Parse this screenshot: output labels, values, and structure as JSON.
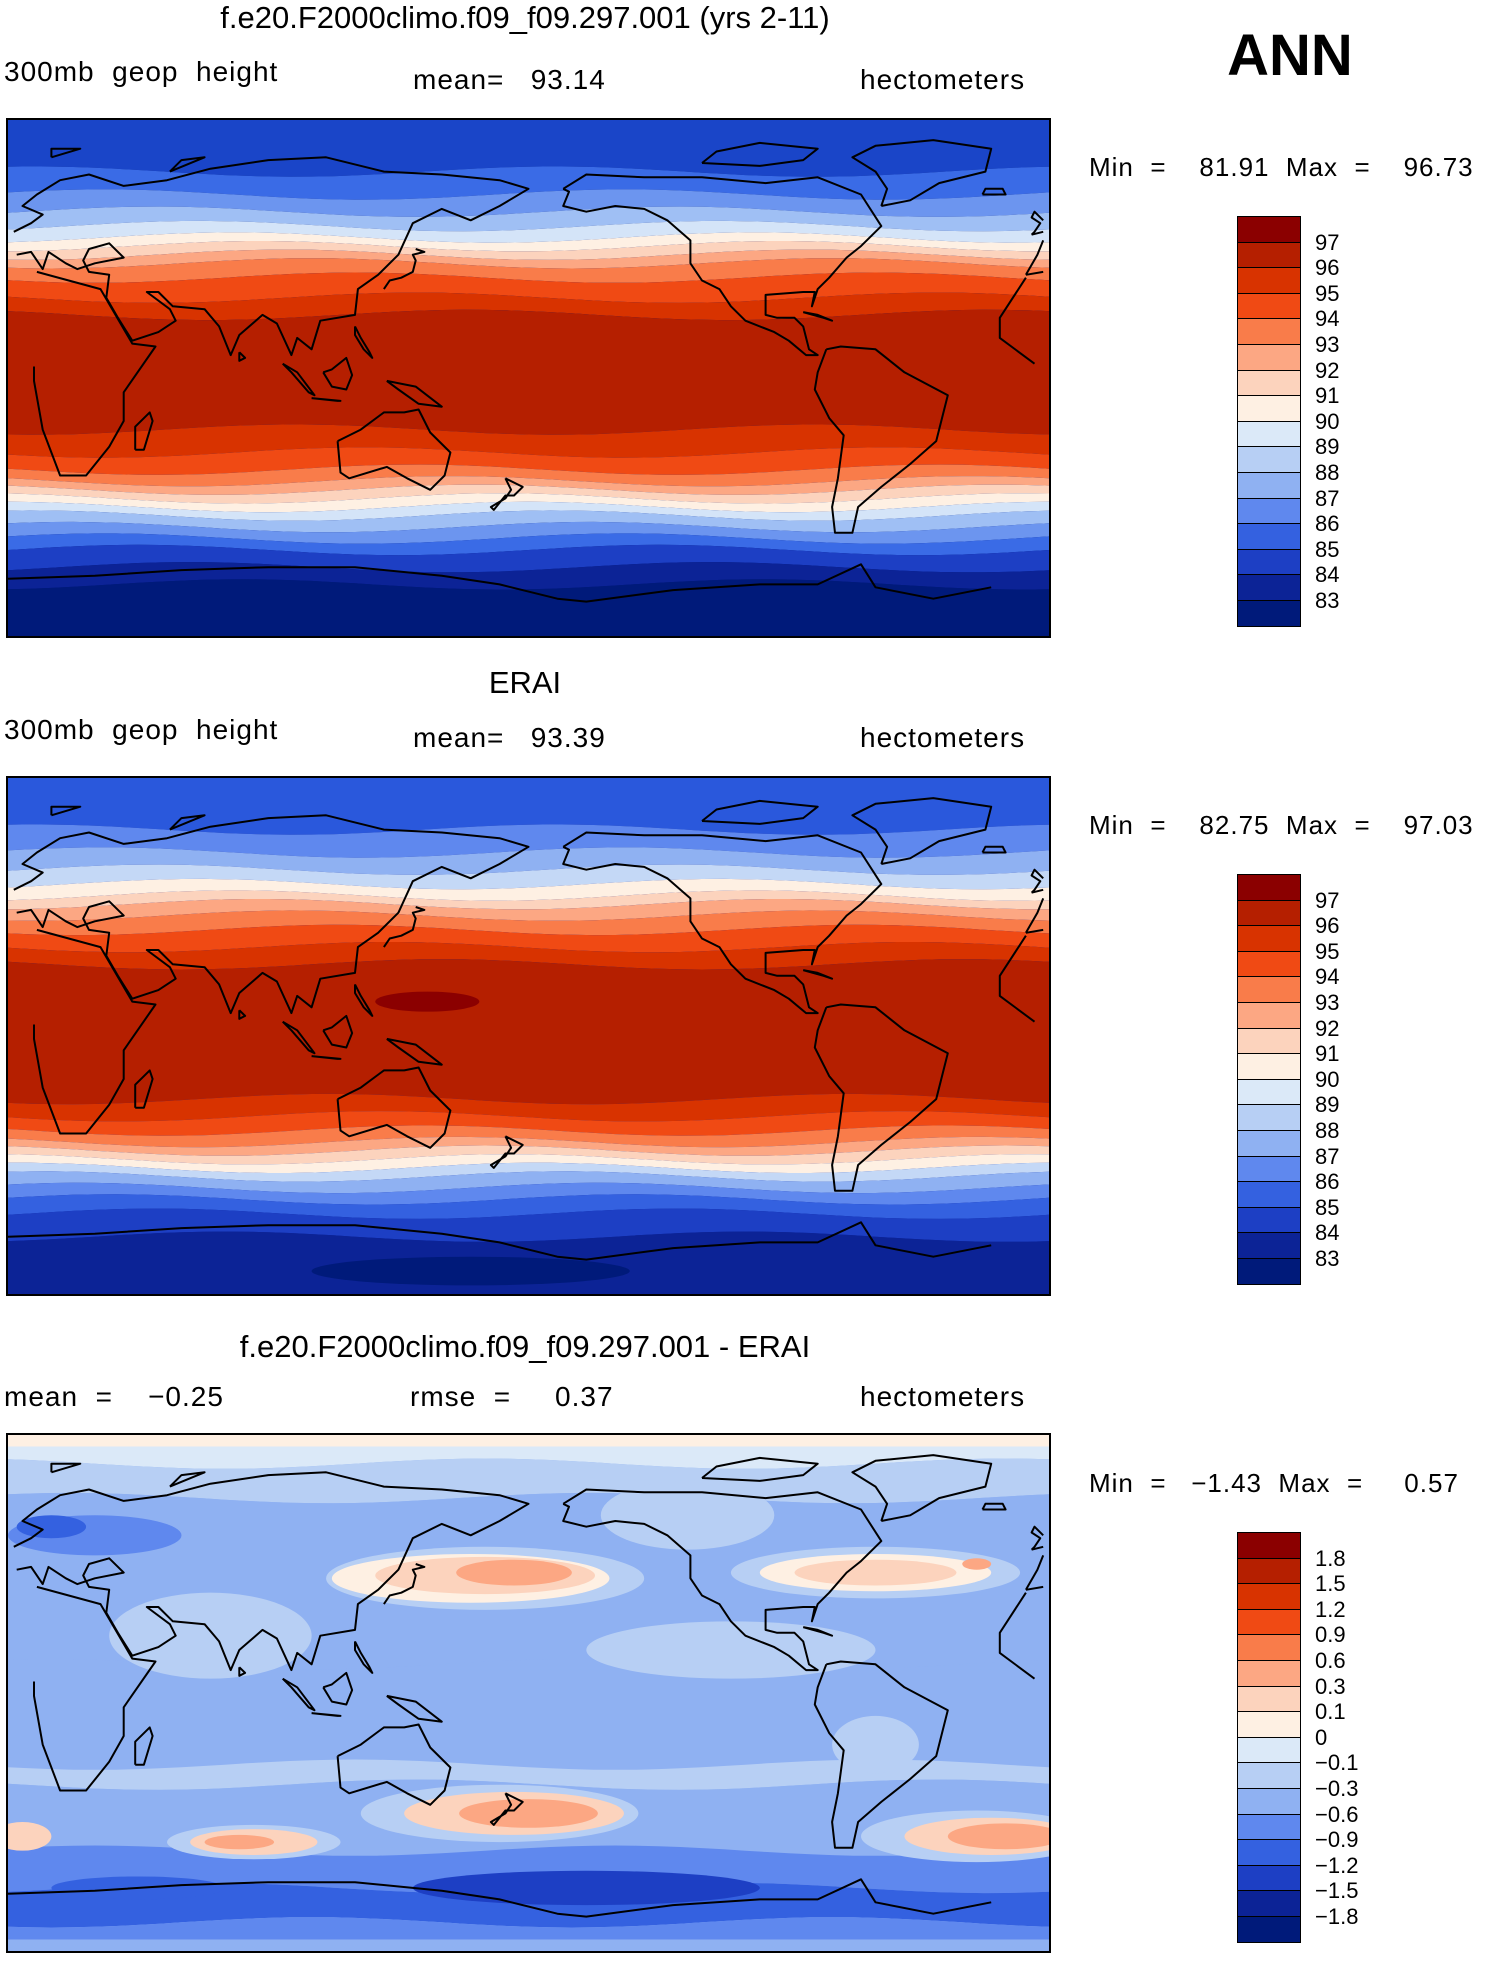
{
  "season": "ANN",
  "panels": [
    {
      "id": "model",
      "title": "f.e20.F2000climo.f09_f09.297.001 (yrs 2-11)",
      "left_label": "300mb  geop  height",
      "center_label": "mean=   93.14",
      "right_label": "hectometers",
      "minmax": "Min  =    81.91  Max  =    96.73",
      "colorbar": {
        "labels": [
          "97",
          "96",
          "95",
          "94",
          "93",
          "92",
          "91",
          "90",
          "89",
          "88",
          "87",
          "86",
          "85",
          "84",
          "83"
        ],
        "colors": [
          "#8b0000",
          "#b51f00",
          "#d83300",
          "#f04a14",
          "#f97c4a",
          "#fca783",
          "#fcd3bd",
          "#fef0e3",
          "#dbe9f8",
          "#b7cff4",
          "#8fb1f2",
          "#5f88ee",
          "#3461e0",
          "#1d3fc4",
          "#0c2396",
          "#001a7a"
        ]
      },
      "map": {
        "kind": "zonal",
        "bands": [
          {
            "lat": 90,
            "color": "#1a45c8"
          },
          {
            "lat": 72,
            "color": "#3a6be6"
          },
          {
            "lat": 64,
            "color": "#6c95ef"
          },
          {
            "lat": 58,
            "color": "#9fbff4"
          },
          {
            "lat": 53,
            "color": "#d4e4f8"
          },
          {
            "lat": 49,
            "color": "#fef0e3"
          },
          {
            "lat": 46,
            "color": "#fcd3bd"
          },
          {
            "lat": 43,
            "color": "#fca783"
          },
          {
            "lat": 40,
            "color": "#f97c4a"
          },
          {
            "lat": 35,
            "color": "#f04a14"
          },
          {
            "lat": 28,
            "color": "#d83300"
          },
          {
            "lat": 22,
            "color": "#b51f00"
          },
          {
            "lat": -18,
            "color": "#d83300"
          },
          {
            "lat": -26,
            "color": "#f04a14"
          },
          {
            "lat": -32,
            "color": "#f97c4a"
          },
          {
            "lat": -36,
            "color": "#fca783"
          },
          {
            "lat": -39,
            "color": "#fcd3bd"
          },
          {
            "lat": -42,
            "color": "#fef0e3"
          },
          {
            "lat": -45,
            "color": "#d4e4f8"
          },
          {
            "lat": -48,
            "color": "#9fbff4"
          },
          {
            "lat": -52,
            "color": "#6c95ef"
          },
          {
            "lat": -56,
            "color": "#3a6be6"
          },
          {
            "lat": -60,
            "color": "#1d3fc4"
          },
          {
            "lat": -66,
            "color": "#0c2396"
          },
          {
            "lat": -72,
            "color": "#001a7a"
          }
        ]
      }
    },
    {
      "id": "obs",
      "title": "ERAI",
      "left_label": "300mb  geop  height",
      "center_label": "mean=   93.39",
      "right_label": "hectometers",
      "minmax": "Min  =    82.75  Max  =    97.03",
      "colorbar": {
        "labels": [
          "97",
          "96",
          "95",
          "94",
          "93",
          "92",
          "91",
          "90",
          "89",
          "88",
          "87",
          "86",
          "85",
          "84",
          "83"
        ],
        "colors": [
          "#8b0000",
          "#b51f00",
          "#d83300",
          "#f04a14",
          "#f97c4a",
          "#fca783",
          "#fcd3bd",
          "#fef0e3",
          "#dbe9f8",
          "#b7cff4",
          "#8fb1f2",
          "#5f88ee",
          "#3461e0",
          "#1d3fc4",
          "#0c2396",
          "#001a7a"
        ]
      },
      "map": {
        "kind": "zonal",
        "bands": [
          {
            "lat": 90,
            "color": "#2a58dc"
          },
          {
            "lat": 72,
            "color": "#5f88ee"
          },
          {
            "lat": 64,
            "color": "#8fb1f2"
          },
          {
            "lat": 58,
            "color": "#c4d8f6"
          },
          {
            "lat": 53,
            "color": "#fef0e3"
          },
          {
            "lat": 49,
            "color": "#fcd3bd"
          },
          {
            "lat": 46,
            "color": "#fca783"
          },
          {
            "lat": 42,
            "color": "#f97c4a"
          },
          {
            "lat": 37,
            "color": "#f04a14"
          },
          {
            "lat": 31,
            "color": "#d83300"
          },
          {
            "lat": 25,
            "color": "#b51f00"
          },
          {
            "lat": -22,
            "color": "#d83300"
          },
          {
            "lat": -28,
            "color": "#f04a14"
          },
          {
            "lat": -33,
            "color": "#f97c4a"
          },
          {
            "lat": -37,
            "color": "#fca783"
          },
          {
            "lat": -40,
            "color": "#fcd3bd"
          },
          {
            "lat": -43,
            "color": "#fef0e3"
          },
          {
            "lat": -46,
            "color": "#c4d8f6"
          },
          {
            "lat": -49,
            "color": "#8fb1f2"
          },
          {
            "lat": -53,
            "color": "#5f88ee"
          },
          {
            "lat": -57,
            "color": "#3461e0"
          },
          {
            "lat": -62,
            "color": "#1d3fc4"
          },
          {
            "lat": -70,
            "color": "#0c2396"
          }
        ],
        "blobs": [
          {
            "lon": 145,
            "lat": 12,
            "rx": 18,
            "ry": 3.5,
            "color": "#8b0000"
          },
          {
            "lon": 160,
            "lat": -82,
            "rx": 55,
            "ry": 5,
            "color": "#001a7a"
          }
        ]
      }
    },
    {
      "id": "diff",
      "title": "f.e20.F2000climo.f09_f09.297.001 - ERAI",
      "left_label": "mean  =    −0.25",
      "center_label": "rmse  =     0.37",
      "right_label": "hectometers",
      "minmax": "Min  =   −1.43  Max  =     0.57",
      "colorbar": {
        "labels": [
          "1.8",
          "1.5",
          "1.2",
          "0.9",
          "0.6",
          "0.3",
          "0.1",
          "0",
          "−0.1",
          "−0.3",
          "−0.6",
          "−0.9",
          "−1.2",
          "−1.5",
          "−1.8"
        ],
        "colors": [
          "#8b0000",
          "#b51f00",
          "#d83300",
          "#f04a14",
          "#f97c4a",
          "#fca783",
          "#fcd3bd",
          "#fef0e3",
          "#dbe9f8",
          "#b7cff4",
          "#8fb1f2",
          "#5f88ee",
          "#3461e0",
          "#1d3fc4",
          "#0c2396",
          "#001a7a"
        ]
      },
      "map": {
        "kind": "field",
        "base": "#8fb1f2",
        "bands": [
          {
            "lat": 90,
            "color": "#fef0e3"
          },
          {
            "lat": 86,
            "color": "#dbe9f8"
          },
          {
            "lat": 80,
            "color": "#b7cff4"
          },
          {
            "lat": 68,
            "color": "#8fb1f2"
          },
          {
            "lat": 10,
            "color": "#8fb1f2"
          },
          {
            "lat": -25,
            "color": "#b7cff4"
          },
          {
            "lat": -32,
            "color": "#8fb1f2"
          },
          {
            "lat": -55,
            "color": "#5f88ee"
          },
          {
            "lat": -68,
            "color": "#3461e0"
          },
          {
            "lat": -80,
            "color": "#5f88ee"
          },
          {
            "lat": -86,
            "color": "#8fb1f2"
          }
        ],
        "blobs": [
          {
            "lon": 165,
            "lat": 40,
            "rx": 55,
            "ry": 11,
            "color": "#b7cff4"
          },
          {
            "lon": 160,
            "lat": 40,
            "rx": 48,
            "ry": 8.5,
            "color": "#fef0e3"
          },
          {
            "lon": 165,
            "lat": 41,
            "rx": 38,
            "ry": 6.5,
            "color": "#fcd3bd"
          },
          {
            "lon": 175,
            "lat": 42,
            "rx": 20,
            "ry": 4.5,
            "color": "#fca783"
          },
          {
            "lon": 300,
            "lat": 42,
            "rx": 50,
            "ry": 9,
            "color": "#b7cff4"
          },
          {
            "lon": 300,
            "lat": 42,
            "rx": 40,
            "ry": 6.5,
            "color": "#fef0e3"
          },
          {
            "lon": 300,
            "lat": 42,
            "rx": 28,
            "ry": 4.5,
            "color": "#fcd3bd"
          },
          {
            "lon": 335,
            "lat": 45,
            "rx": 5,
            "ry": 2,
            "color": "#fca783"
          },
          {
            "lon": 30,
            "lat": 55,
            "rx": 30,
            "ry": 7,
            "color": "#5f88ee"
          },
          {
            "lon": 15,
            "lat": 58,
            "rx": 12,
            "ry": 4,
            "color": "#3461e0"
          },
          {
            "lon": 235,
            "lat": 62,
            "rx": 30,
            "ry": 12,
            "color": "#b7cff4"
          },
          {
            "lon": 170,
            "lat": -42,
            "rx": 48,
            "ry": 10,
            "color": "#b7cff4"
          },
          {
            "lon": 175,
            "lat": -42,
            "rx": 38,
            "ry": 7.5,
            "color": "#fcd3bd"
          },
          {
            "lon": 180,
            "lat": -42,
            "rx": 24,
            "ry": 5,
            "color": "#fca783"
          },
          {
            "lon": 85,
            "lat": -52,
            "rx": 30,
            "ry": 6,
            "color": "#b7cff4"
          },
          {
            "lon": 85,
            "lat": -52,
            "rx": 22,
            "ry": 4.5,
            "color": "#fcd3bd"
          },
          {
            "lon": 80,
            "lat": -52,
            "rx": 12,
            "ry": 2.5,
            "color": "#fca783"
          },
          {
            "lon": 335,
            "lat": -50,
            "rx": 40,
            "ry": 9,
            "color": "#b7cff4"
          },
          {
            "lon": 340,
            "lat": -50,
            "rx": 30,
            "ry": 6.5,
            "color": "#fcd3bd"
          },
          {
            "lon": 345,
            "lat": -50,
            "rx": 20,
            "ry": 4.5,
            "color": "#fca783"
          },
          {
            "lon": 5,
            "lat": -50,
            "rx": 10,
            "ry": 5,
            "color": "#fcd3bd"
          },
          {
            "lon": 200,
            "lat": -68,
            "rx": 60,
            "ry": 6,
            "color": "#1d3fc4"
          },
          {
            "lon": 45,
            "lat": -68,
            "rx": 30,
            "ry": 4,
            "color": "#3461e0"
          },
          {
            "lon": 70,
            "lat": 20,
            "rx": 35,
            "ry": 15,
            "color": "#b7cff4"
          },
          {
            "lon": 250,
            "lat": 15,
            "rx": 50,
            "ry": 10,
            "color": "#b7cff4"
          },
          {
            "lon": 300,
            "lat": -18,
            "rx": 15,
            "ry": 10,
            "color": "#b7cff4"
          }
        ]
      }
    }
  ]
}
